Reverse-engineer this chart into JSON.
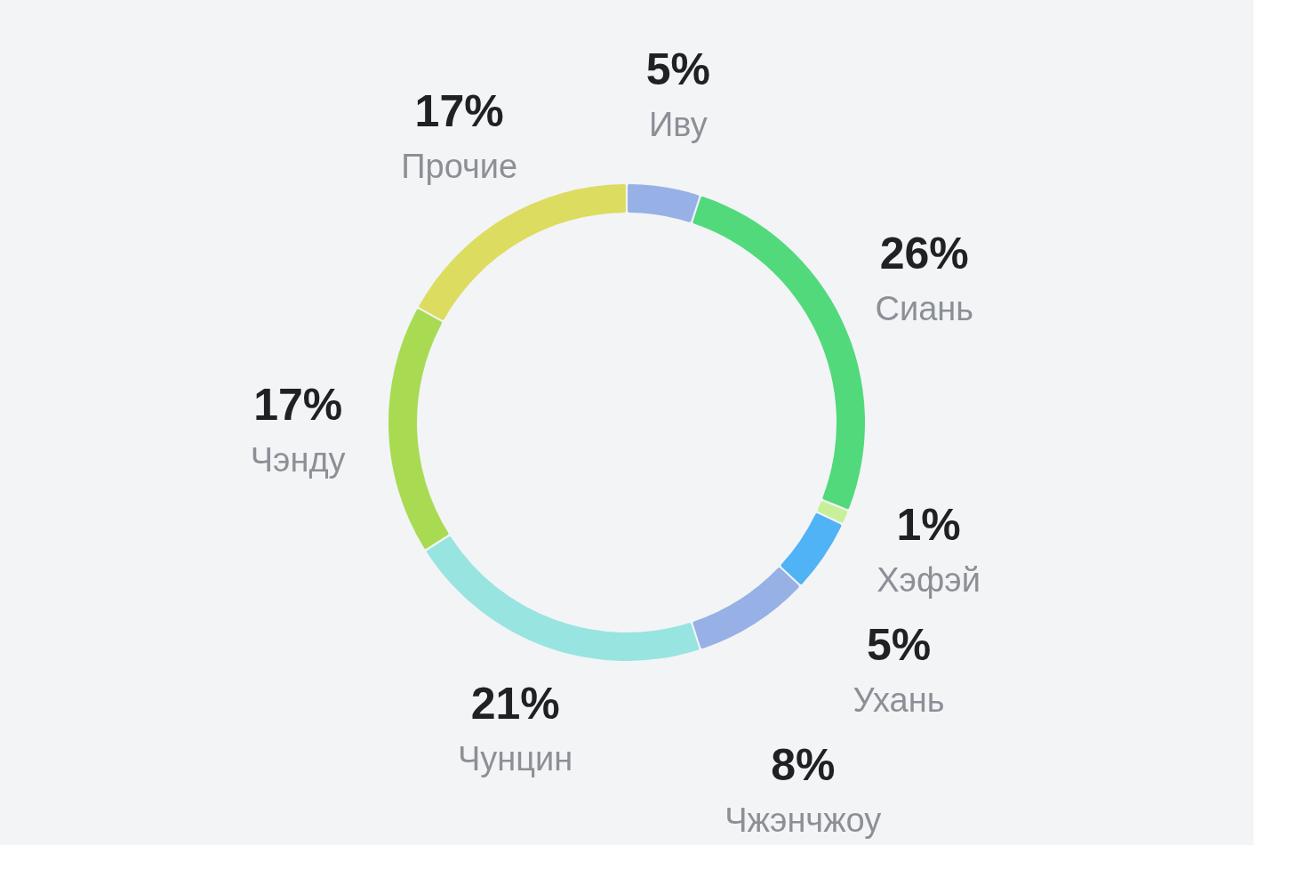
{
  "chart_data": {
    "type": "donut",
    "categories": [
      "Иву",
      "Сиань",
      "Хэфэй",
      "Ухань",
      "Чжэнчжоу",
      "Чунцин",
      "Чэнду",
      "Прочие"
    ],
    "values": [
      5,
      26,
      1,
      5,
      8,
      21,
      17,
      17
    ],
    "value_labels": [
      "5%",
      "26%",
      "1%",
      "5%",
      "8%",
      "21%",
      "17%",
      "17%"
    ],
    "colors": [
      "#97b0e6",
      "#52d97c",
      "#c8f09a",
      "#4fb3f5",
      "#97b0e6",
      "#97e4e0",
      "#a8db52",
      "#dcdc60"
    ],
    "legend": false
  }
}
